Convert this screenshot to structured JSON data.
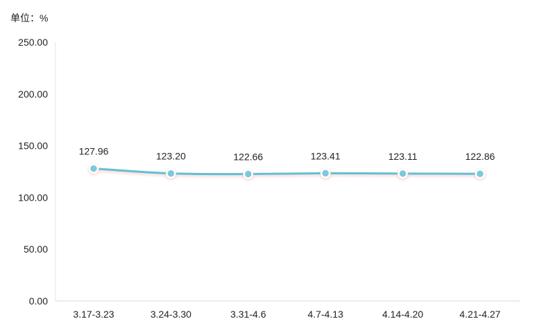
{
  "chart_data": {
    "type": "line",
    "title": "",
    "xlabel": "",
    "ylabel": "",
    "unit_label": "单位：%",
    "categories": [
      "3.17-3.23",
      "3.24-3.30",
      "3.31-4.6",
      "4.7-4.13",
      "4.14-4.20",
      "4.21-4.27"
    ],
    "series": [
      {
        "values": [
          127.96,
          123.2,
          122.66,
          123.41,
          123.11,
          122.86
        ]
      }
    ],
    "data_labels": [
      "127.96",
      "123.20",
      "122.66",
      "123.41",
      "123.11",
      "122.86"
    ],
    "yticks": [
      0,
      50,
      100,
      150,
      200,
      250
    ],
    "ytick_labels": [
      "0.00",
      "50.00",
      "100.00",
      "150.00",
      "200.00",
      "250.00"
    ],
    "ylim": [
      0,
      250
    ],
    "grid": false,
    "legend": "none",
    "colors": {
      "line": "#5fc0d6",
      "marker_fill": "#7bc9db",
      "marker_stroke": "#ffffff",
      "glow": "#f2b8b0",
      "axis": "#d9d9d9"
    }
  }
}
